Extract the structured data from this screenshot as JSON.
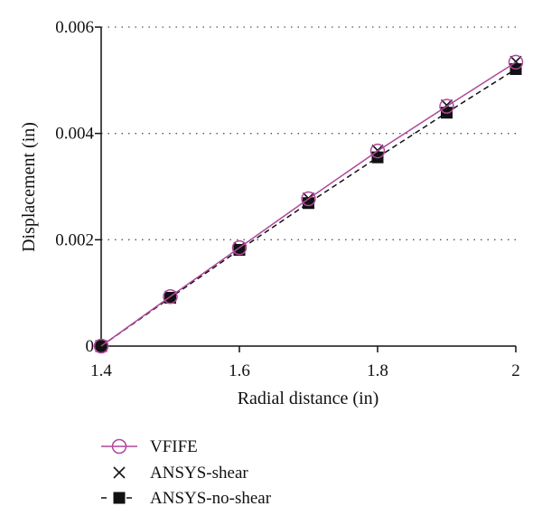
{
  "chart_data": {
    "type": "line",
    "xlabel": "Radial distance (in)",
    "ylabel": "Displacement (in)",
    "xlim": [
      1.4,
      2.0
    ],
    "ylim": [
      0,
      0.006
    ],
    "x_ticks": [
      "1.4",
      "1.6",
      "1.8",
      "2"
    ],
    "y_ticks": [
      "0",
      "0.002",
      "0.004",
      "0.006"
    ],
    "grid": "horizontal dotted",
    "legend_position": "bottom-left",
    "x": [
      1.4,
      1.5,
      1.6,
      1.7,
      1.8,
      1.9,
      2.0
    ],
    "series": [
      {
        "name": "VFIFE",
        "marker": "open-circle",
        "line": "solid",
        "color": "#b0479b",
        "values": [
          0.0,
          0.00093,
          0.00185,
          0.00277,
          0.00367,
          0.00451,
          0.00534
        ]
      },
      {
        "name": "ANSYS-shear",
        "marker": "x",
        "line": "none",
        "color": "#111111",
        "values": [
          0.0,
          0.00093,
          0.00185,
          0.00278,
          0.00368,
          0.00453,
          0.00535
        ]
      },
      {
        "name": "ANSYS-no-shear",
        "marker": "filled-square",
        "line": "dashed",
        "color": "#111111",
        "values": [
          0.0,
          0.00091,
          0.00181,
          0.00269,
          0.00355,
          0.00439,
          0.00521
        ]
      }
    ]
  }
}
